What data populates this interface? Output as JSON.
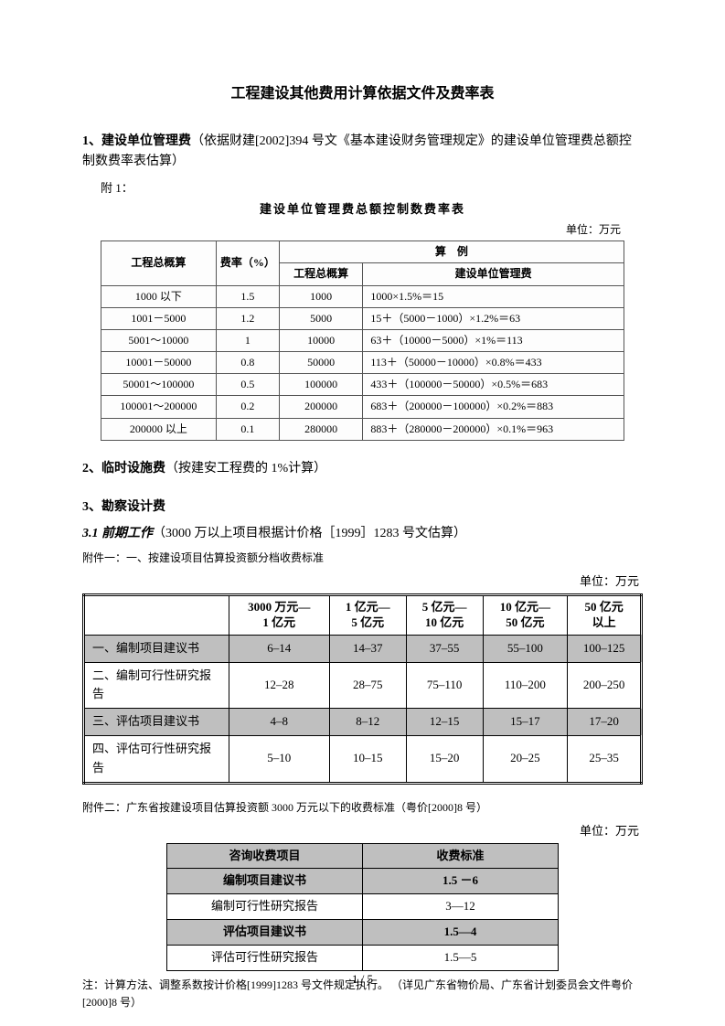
{
  "title": "工程建设其他费用计算依据文件及费率表",
  "section1": {
    "heading_num": "1、",
    "heading_bold": "建设单位管理费",
    "heading_rest": "（依据财建[2002]394 号文《基本建设财务管理规定》的建设单位管理费总额控制数费率表估算）",
    "scan_label": "附 1：",
    "scan_title": "建设单位管理费总额控制数费率表",
    "scan_unit": "单位：万元",
    "header1": "工程总概算",
    "header2": "费率（%）",
    "header_example_span": "算　例",
    "header_example_a": "工程总概算",
    "header_example_b": "建设单位管理费",
    "rows": [
      {
        "a": "1000 以下",
        "b": "1.5",
        "c": "1000",
        "d": "1000×1.5%＝15"
      },
      {
        "a": "1001－5000",
        "b": "1.2",
        "c": "5000",
        "d": "15＋（5000－1000）×1.2%＝63"
      },
      {
        "a": "5001～10000",
        "b": "1",
        "c": "10000",
        "d": "63＋（10000－5000）×1%＝113"
      },
      {
        "a": "10001－50000",
        "b": "0.8",
        "c": "50000",
        "d": "113＋（50000－10000）×0.8%＝433"
      },
      {
        "a": "50001～100000",
        "b": "0.5",
        "c": "100000",
        "d": "433＋（100000－50000）×0.5%＝683"
      },
      {
        "a": "100001～200000",
        "b": "0.2",
        "c": "200000",
        "d": "683＋（200000－100000）×0.2%＝883"
      },
      {
        "a": "200000 以上",
        "b": "0.1",
        "c": "280000",
        "d": "883＋（280000－200000）×0.1%＝963"
      }
    ]
  },
  "section2": {
    "heading_num": "2、",
    "heading_bold": "临时设施费",
    "heading_rest": "（按建安工程费的 1%计算）"
  },
  "section3": {
    "heading_num": "3、",
    "heading_bold": "勘察设计费"
  },
  "section3_1": {
    "head_num": "3.1",
    "head_italic": "前期工作",
    "head_rest": "（3000 万以上项目根据计价格［1999］1283 号文估算）",
    "attach1_label": "附件一：一、按建设项目估算投资额分档收费标准",
    "unit": "单位：万元",
    "cols": [
      "3000 万元—\n1 亿元",
      "1 亿元—\n5 亿元",
      "5 亿元—\n10 亿元",
      "10 亿元—\n50 亿元",
      "50 亿元\n以上"
    ],
    "rows": [
      {
        "label": "一、编制项目建议书",
        "shaded": true,
        "cells": [
          "6–14",
          "14–37",
          "37–55",
          "55–100",
          "100–125"
        ]
      },
      {
        "label": "二、编制可行性研究报告",
        "shaded": false,
        "cells": [
          "12–28",
          "28–75",
          "75–110",
          "110–200",
          "200–250"
        ]
      },
      {
        "label": "三、评估项目建议书",
        "shaded": true,
        "cells": [
          "4–8",
          "8–12",
          "12–15",
          "15–17",
          "17–20"
        ]
      },
      {
        "label": "四、评估可行性研究报告",
        "shaded": false,
        "cells": [
          "5–10",
          "10–15",
          "15–20",
          "20–25",
          "25–35"
        ]
      }
    ],
    "attach2_label": "附件二：广东省按建设项目估算投资额 3000 万元以下的收费标准（粤价[2000]8 号）",
    "t3_unit": "单位：万元",
    "t3_header_a": "咨询收费项目",
    "t3_header_b": "收费标准",
    "t3_rows": [
      {
        "a": "编制项目建议书",
        "b": "1.5 －6",
        "shaded": true
      },
      {
        "a": "编制可行性研究报告",
        "b": "3—12",
        "shaded": false
      },
      {
        "a": "评估项目建议书",
        "b": "1.5—4",
        "shaded": true
      },
      {
        "a": "评估可行性研究报告",
        "b": "1.5—5",
        "shaded": false
      }
    ],
    "note": "注：计算方法、调整系数按计价格[1999]1283 号文件规定执行。 （详见广东省物价局、广东省计划委员会文件粤价[2000]8 号）"
  },
  "footer": "1 / 5",
  "style": {
    "body_font_size_pt": 10.5,
    "title_font_size_pt": 12,
    "small_font_size_pt": 9,
    "shade_color": "#bfbfbf",
    "border_color": "#000000",
    "scan_border_color": "#555555",
    "background": "#ffffff",
    "text_color": "#000000"
  }
}
